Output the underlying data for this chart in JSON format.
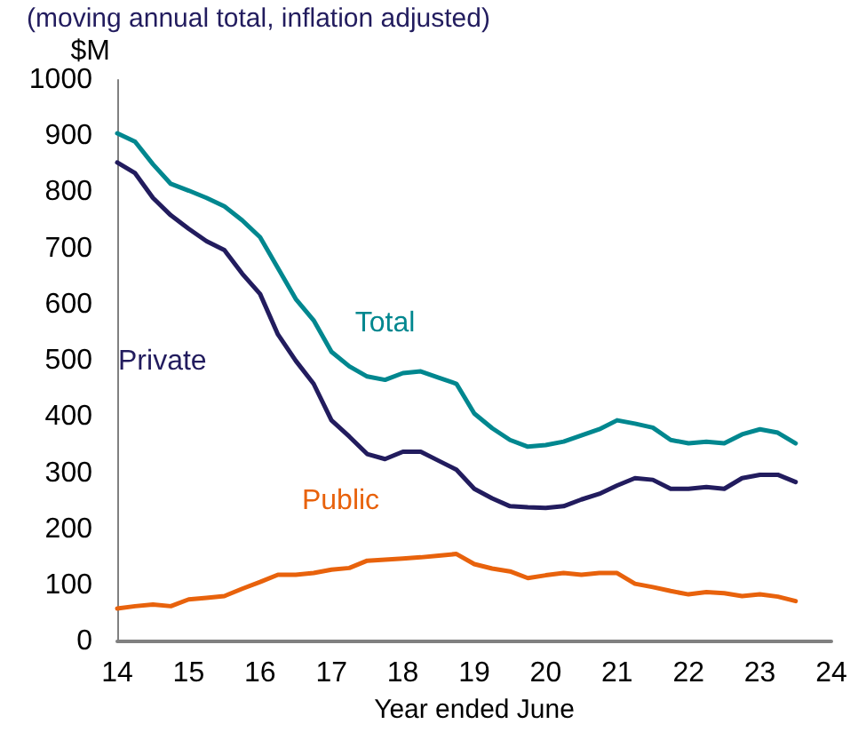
{
  "chart_data": {
    "type": "line",
    "subtitle": "(moving annual total, inflation adjusted)",
    "ylabel": "$M",
    "xlabel": "Year ended June",
    "x": [
      14,
      14.25,
      14.5,
      14.75,
      15,
      15.25,
      15.5,
      15.75,
      16,
      16.25,
      16.5,
      16.75,
      17,
      17.25,
      17.5,
      17.75,
      18,
      18.25,
      18.5,
      18.75,
      19,
      19.25,
      19.5,
      19.75,
      20,
      20.25,
      20.5,
      20.75,
      21,
      21.25,
      21.5,
      21.75,
      22,
      22.25,
      22.5,
      22.75,
      23,
      23.25,
      23.5
    ],
    "series": [
      {
        "name": "Total",
        "color": "#00878f",
        "values": [
          905,
          890,
          850,
          815,
          803,
          790,
          775,
          750,
          720,
          665,
          610,
          572,
          516,
          490,
          472,
          466,
          478,
          481,
          470,
          459,
          406,
          380,
          359,
          347,
          350,
          356,
          367,
          378,
          394,
          388,
          381,
          359,
          353,
          356,
          353,
          369,
          378,
          372,
          353
        ]
      },
      {
        "name": "Private",
        "color": "#221c5e",
        "values": [
          853,
          834,
          790,
          759,
          735,
          713,
          697,
          655,
          619,
          547,
          500,
          459,
          394,
          365,
          334,
          325,
          338,
          338,
          322,
          306,
          272,
          255,
          241,
          239,
          238,
          241,
          253,
          263,
          278,
          291,
          288,
          272,
          272,
          275,
          272,
          291,
          297,
          297,
          284
        ]
      },
      {
        "name": "Public",
        "color": "#e8620c",
        "values": [
          59,
          63,
          66,
          63,
          75,
          78,
          81,
          94,
          106,
          119,
          119,
          122,
          128,
          131,
          144,
          146,
          148,
          150,
          153,
          156,
          138,
          130,
          125,
          113,
          118,
          122,
          119,
          122,
          122,
          103,
          97,
          90,
          84,
          88,
          86,
          81,
          84,
          80,
          72
        ]
      }
    ],
    "xlim": [
      14,
      24
    ],
    "xticks": [
      14,
      15,
      16,
      17,
      18,
      19,
      20,
      21,
      22,
      23,
      24
    ],
    "ylim": [
      0,
      1000
    ],
    "yticks": [
      0,
      100,
      200,
      300,
      400,
      500,
      600,
      700,
      800,
      900,
      1000
    ],
    "grid": false,
    "legend": false,
    "marker": "none",
    "line_style": "solid"
  }
}
